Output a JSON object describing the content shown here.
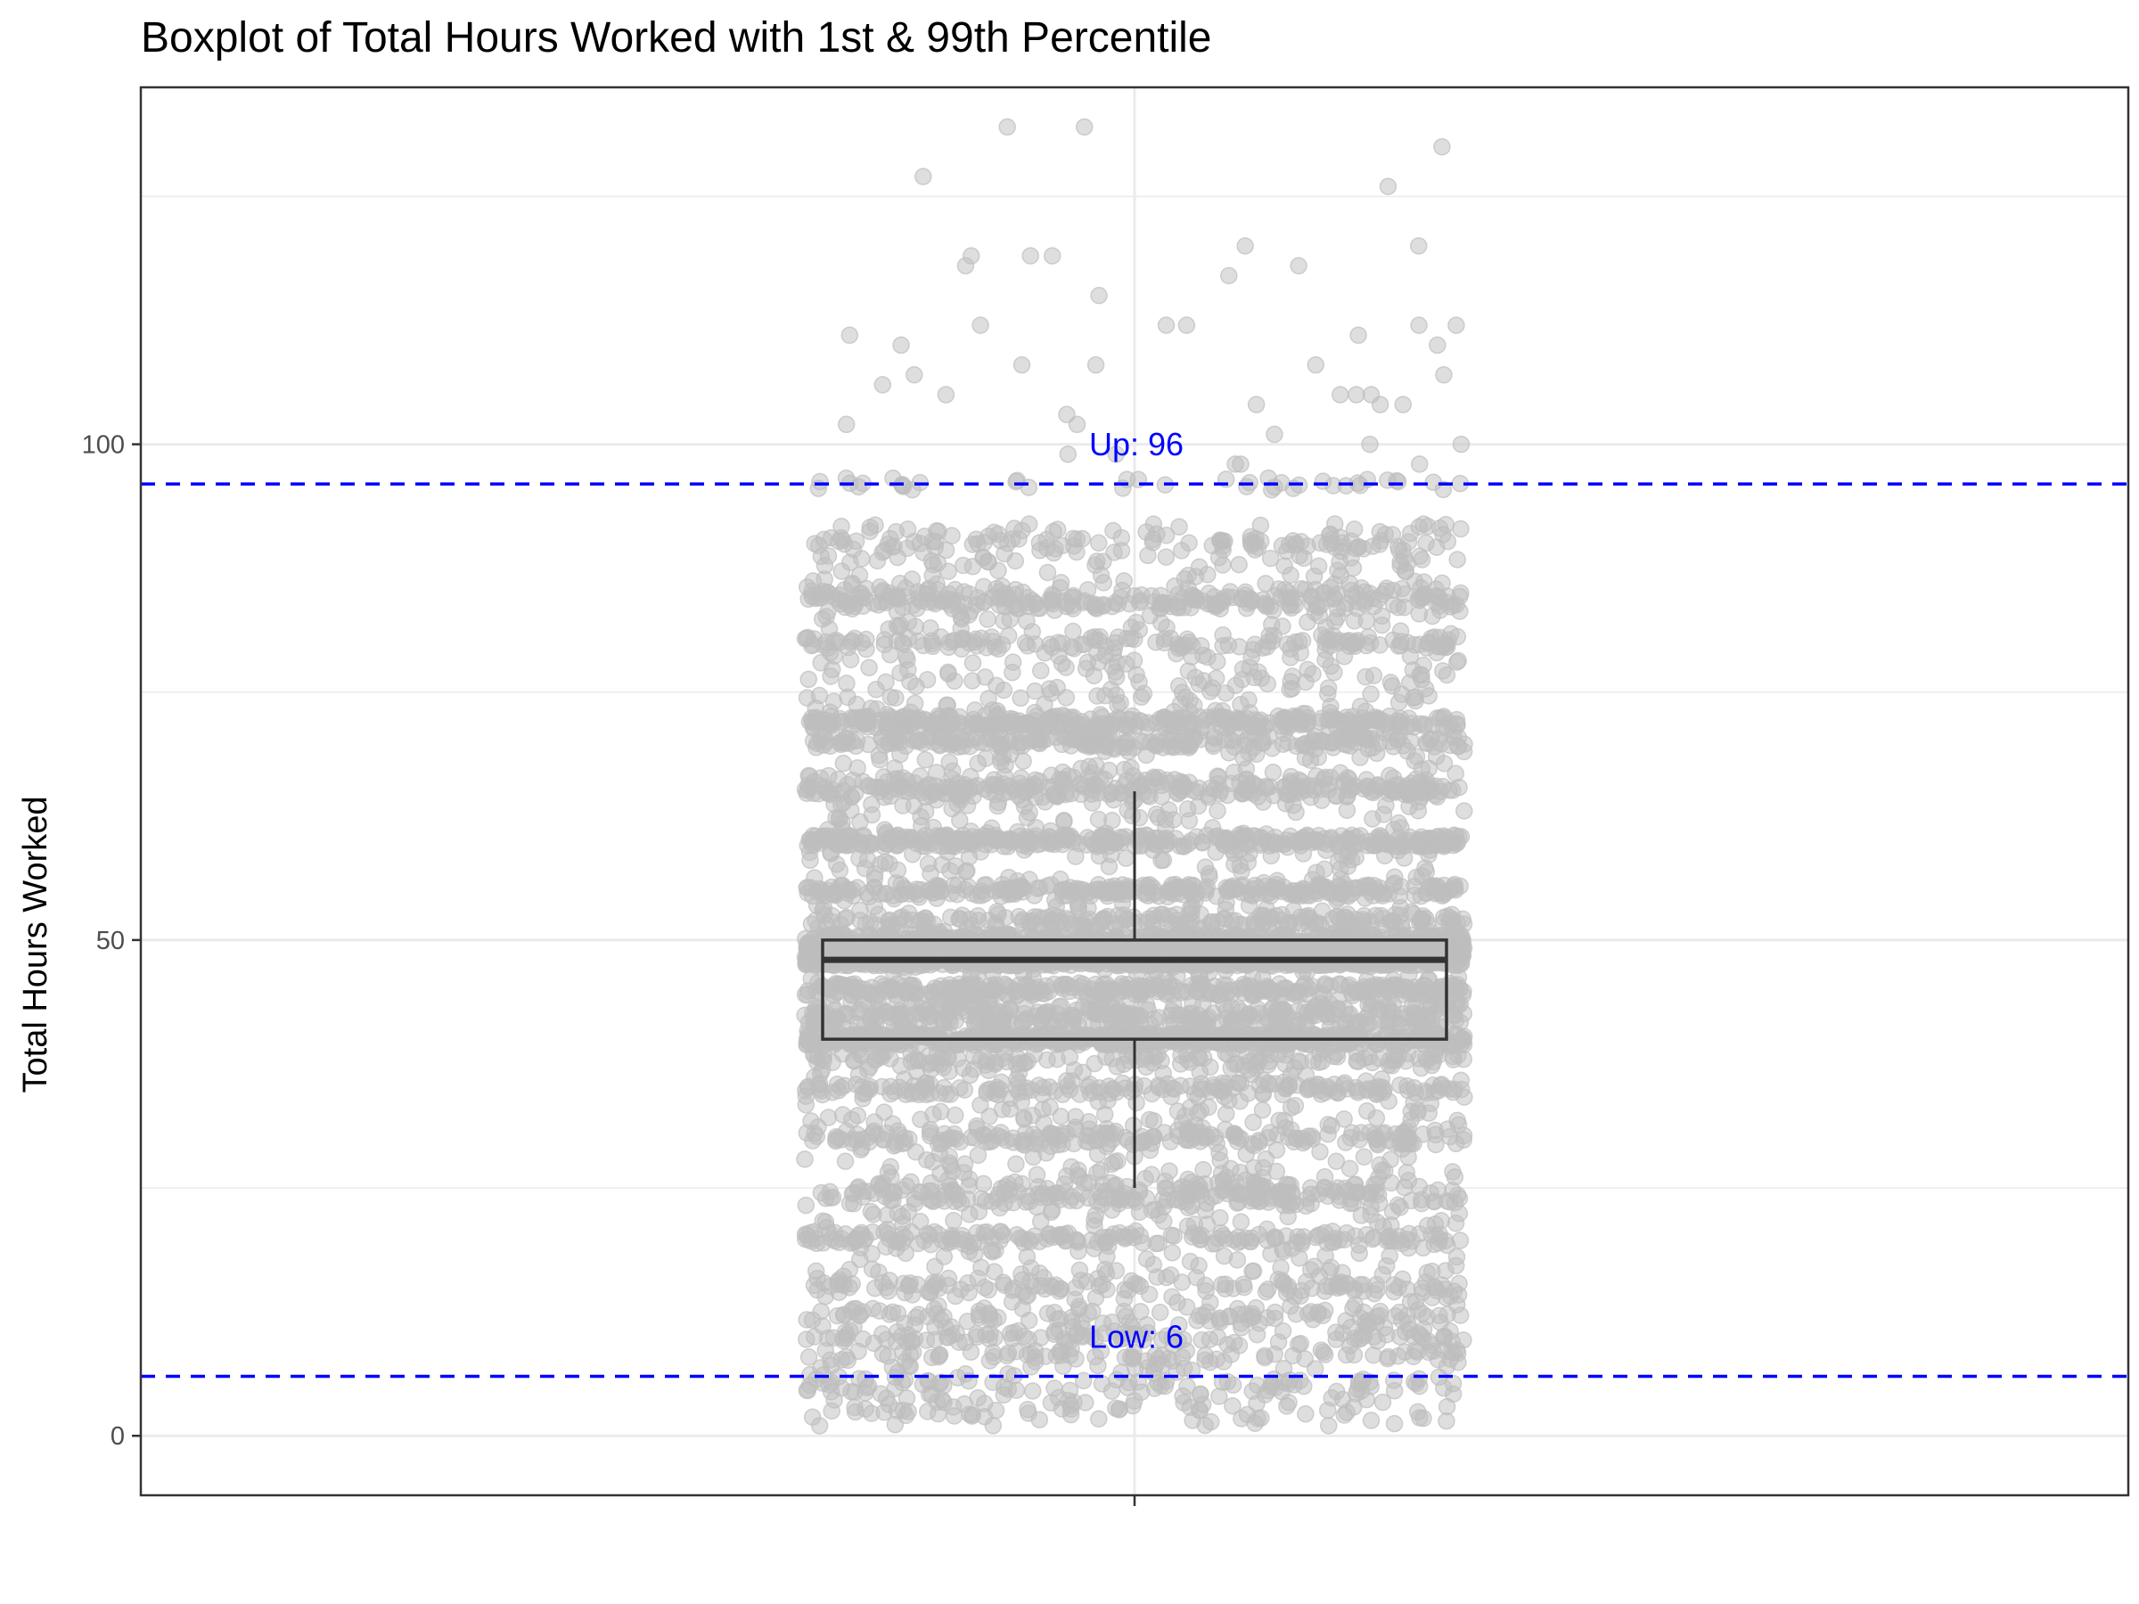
{
  "chart_data": {
    "type": "boxplot",
    "title": "Boxplot of Total Hours Worked with 1st & 99th Percentile",
    "ylabel": "Total Hours Worked",
    "xlabel": "",
    "ylim": [
      -6,
      136
    ],
    "y_ticks": [
      0,
      50,
      100
    ],
    "y_tick_labels": [
      "0",
      "50",
      "100"
    ],
    "grid": true,
    "box": {
      "q1": 40,
      "median": 48,
      "q3": 50,
      "whisker_low": 25,
      "whisker_high": 65
    },
    "reference_lines": [
      {
        "name": "upper",
        "label": "Up: 96",
        "value": 96,
        "color": "#0000ff",
        "style": "dashed"
      },
      {
        "name": "lower",
        "label": "Low: 6",
        "value": 6,
        "color": "#0000ff",
        "style": "dashed"
      }
    ],
    "jitter_points": {
      "color": "#bebebe",
      "opacity": 0.5,
      "outliers": [
        132,
        130,
        127,
        126,
        132,
        119,
        119,
        118,
        118,
        120,
        119,
        120,
        117,
        115,
        112,
        112,
        112,
        112,
        111,
        110,
        110,
        111,
        112,
        108,
        108,
        108,
        107,
        107,
        105,
        105,
        105,
        105,
        106,
        104,
        104,
        104,
        103,
        102,
        102,
        101,
        100,
        100,
        99,
        99,
        98,
        98,
        98
      ]
    }
  },
  "colors": {
    "reference": "#0000ff",
    "points": "#bebebe",
    "box_stroke": "#333333",
    "grid": "#ebebeb",
    "panel_border": "#333333"
  }
}
